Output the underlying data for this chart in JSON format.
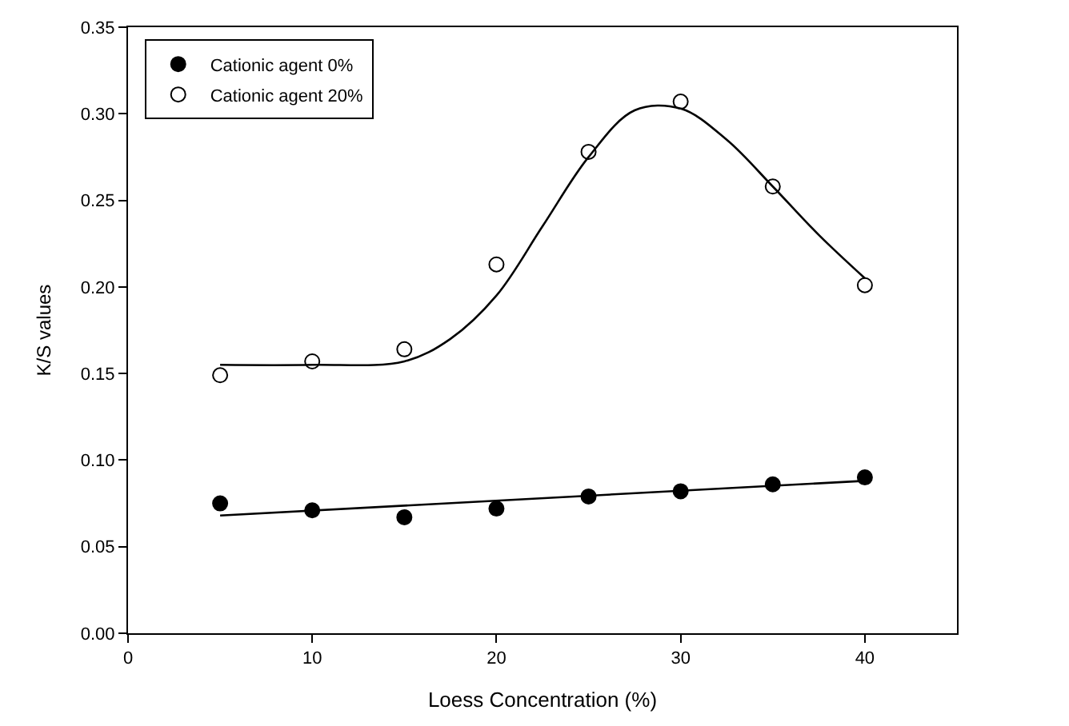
{
  "chart_data": {
    "type": "scatter",
    "xlabel": "Loess Concentration (%)",
    "ylabel": "K/S values",
    "xlim": [
      0,
      45
    ],
    "xticks": [
      0,
      10,
      20,
      30,
      40
    ],
    "ylim": [
      0,
      0.35
    ],
    "yticks": [
      {
        "value": 0,
        "label": "0.00"
      },
      {
        "value": 0.05,
        "label": "0.05"
      },
      {
        "value": 0.1,
        "label": "0.10"
      },
      {
        "value": 0.15,
        "label": "0.15"
      },
      {
        "value": 0.2,
        "label": "0.20"
      },
      {
        "value": 0.25,
        "label": "0.25"
      },
      {
        "value": 0.3,
        "label": "0.30"
      },
      {
        "value": 0.35,
        "label": "0.35"
      }
    ],
    "x": [
      5,
      10,
      15,
      20,
      25,
      30,
      35,
      40
    ],
    "marker": "circle",
    "legend": "top left",
    "series": [
      {
        "name": "Cationic agent 0%",
        "color": "#000000",
        "values": [
          0.075,
          0.071,
          0.067,
          0.072,
          0.079,
          0.082,
          0.086,
          0.09
        ]
      },
      {
        "name": "Cationic agent 20%",
        "color": "#ffffff",
        "values": [
          0.149,
          0.157,
          0.164,
          0.213,
          0.278,
          0.307,
          0.258,
          0.201
        ]
      },
      {
        "type": "line",
        "marker": "none",
        "color": "#000000",
        "x": [
          5,
          40
        ],
        "values": [
          0.068,
          0.088
        ]
      },
      {
        "type": "line",
        "marker": "none",
        "color": "#000000",
        "x": [
          5,
          10,
          15,
          17.5,
          20,
          22.5,
          25,
          27.5,
          30,
          32.5,
          35,
          37.5,
          40
        ],
        "values": [
          0.155,
          0.155,
          0.157,
          0.17,
          0.195,
          0.235,
          0.275,
          0.302,
          0.303,
          0.285,
          0.258,
          0.23,
          0.205
        ]
      }
    ]
  }
}
